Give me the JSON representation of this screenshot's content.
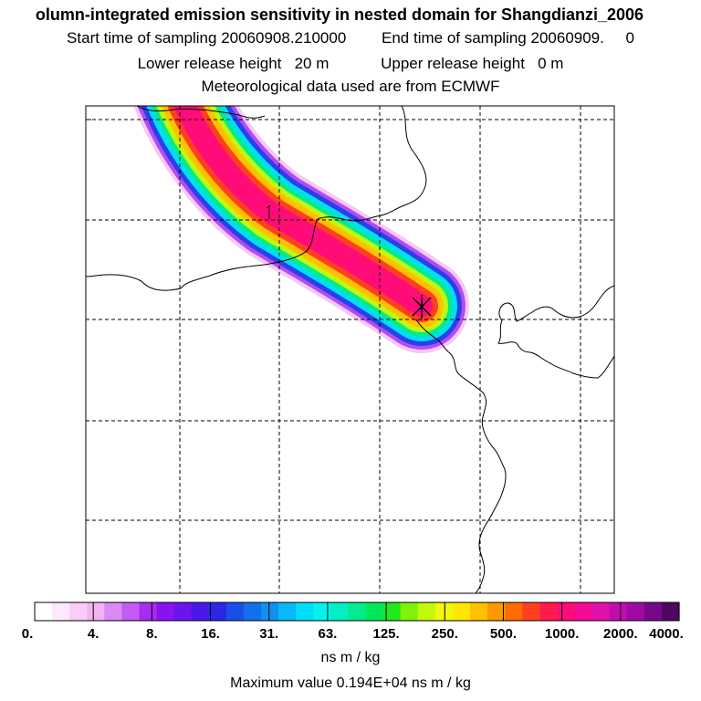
{
  "titles": {
    "line1": "olumn-integrated emission sensitivity in nested domain for Shangdianzi_2006",
    "start_label": "Start time of sampling",
    "start_value": "20060908.210000",
    "end_label": "End time of sampling",
    "end_value": "20060909.     0",
    "lower_label": "Lower release height",
    "lower_value": "20 m",
    "upper_label": "Upper release height",
    "upper_value": "0 m",
    "met_line": "Meteorological data used are from ECMWF"
  },
  "colorbar": {
    "labels": [
      "0.",
      "4.",
      "8.",
      "16.",
      "31.",
      "63.",
      "125.",
      "250.",
      "500.",
      "1000.",
      "2000.",
      "4000."
    ],
    "colors": [
      "#ffffff",
      "#fde8fc",
      "#f9cdf7",
      "#f3b3f1",
      "#d98af6",
      "#c25cf4",
      "#a52cf0",
      "#8b12f0",
      "#6a14ee",
      "#4b18ea",
      "#2d26e6",
      "#1a4ee8",
      "#1170ec",
      "#0e92f2",
      "#09b8f6",
      "#00ddf8",
      "#00f4ec",
      "#00f0c2",
      "#00ec8e",
      "#00e85a",
      "#22e81e",
      "#7ff20a",
      "#c2f80a",
      "#f3f80a",
      "#ffe800",
      "#ffc000",
      "#ff9800",
      "#ff6c00",
      "#ff4020",
      "#ff1c4c",
      "#ff0c78",
      "#f50c96",
      "#e010a8",
      "#c20cae",
      "#a00aa4",
      "#78088a",
      "#500664"
    ],
    "unit": "ns m / kg"
  },
  "max_value": "Maximum value  0.194E+04 ns m / kg"
}
